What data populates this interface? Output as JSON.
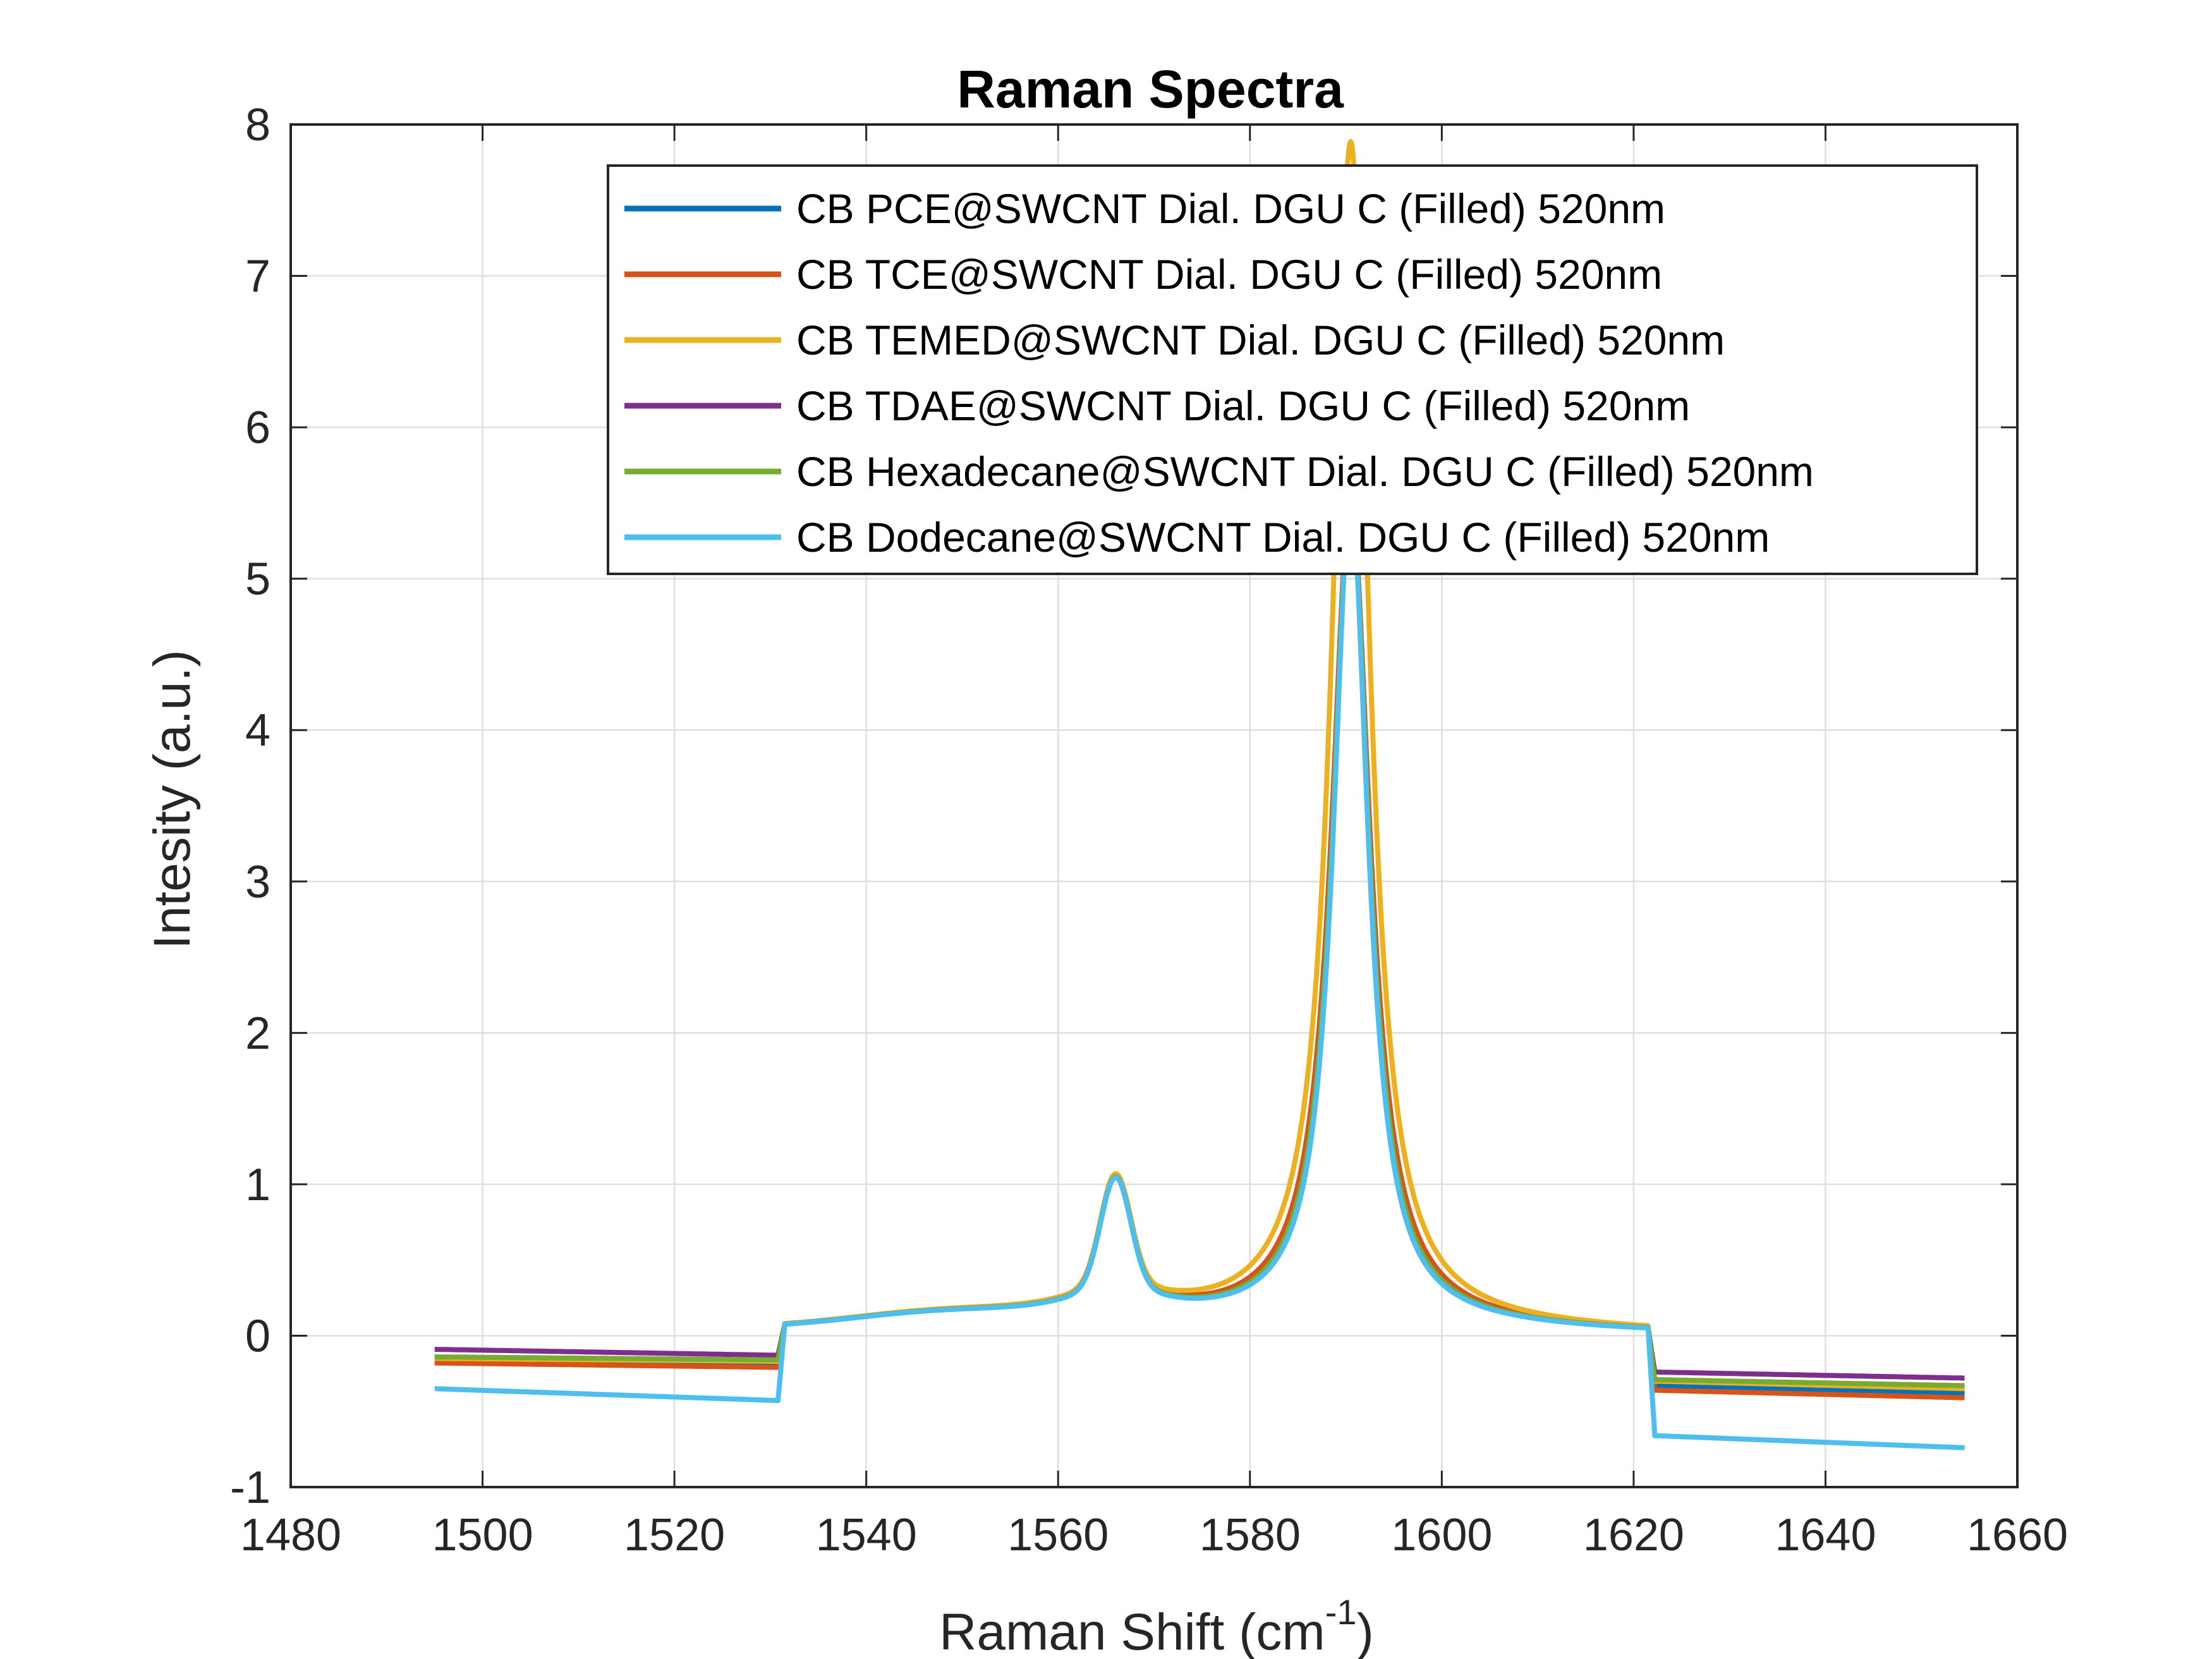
{
  "chart_data": {
    "type": "line",
    "title": "Raman Spectra",
    "xlabel_main": "Raman Shift (cm",
    "xlabel_sup": "-1",
    "xlabel_end": ")",
    "ylabel": "Intesity (a.u.)",
    "xlim": [
      1480,
      1660
    ],
    "ylim": [
      -1,
      8
    ],
    "xticks": [
      1480,
      1500,
      1520,
      1540,
      1560,
      1580,
      1600,
      1620,
      1640,
      1660
    ],
    "yticks": [
      -1,
      0,
      1,
      2,
      3,
      4,
      5,
      6,
      7,
      8
    ],
    "grid": true,
    "legend_position": "top-right",
    "peak_x": [
      1566,
      1590.5
    ],
    "series": [
      {
        "name": "CB PCE@SWCNT Dial. DGU C (Filled) 520nm",
        "color": "#0072BD",
        "baseline_left": [
          -0.16,
          -0.18
        ],
        "baseline_right": [
          -0.33,
          -0.38
        ],
        "g_peak": 5.5,
        "g_width": 2.25
      },
      {
        "name": "CB TCE@SWCNT Dial. DGU C (Filled) 520nm",
        "color": "#D95319",
        "baseline_left": [
          -0.18,
          -0.21
        ],
        "baseline_right": [
          -0.36,
          -0.41
        ],
        "g_peak": 5.5,
        "g_width": 2.45
      },
      {
        "name": "CB TEMED@SWCNT Dial. DGU C (Filled) 520nm",
        "color": "#EDB120",
        "baseline_left": [
          -0.15,
          -0.17
        ],
        "baseline_right": [
          -0.3,
          -0.35
        ],
        "g_peak": 7.85,
        "g_width": 2.3
      },
      {
        "name": "CB TDAE@SWCNT Dial. DGU C (Filled) 520nm",
        "color": "#7E2F8E",
        "baseline_left": [
          -0.09,
          -0.13
        ],
        "baseline_right": [
          -0.24,
          -0.28
        ],
        "g_peak": 5.5,
        "g_width": 2.3
      },
      {
        "name": "CB Hexadecane@SWCNT Dial. DGU C (Filled) 520nm",
        "color": "#77AC30",
        "baseline_left": [
          -0.14,
          -0.16
        ],
        "baseline_right": [
          -0.29,
          -0.33
        ],
        "g_peak": 5.5,
        "g_width": 2.3
      },
      {
        "name": "CB Dodecane@SWCNT Dial. DGU C (Filled) 520nm",
        "color": "#4DBEEE",
        "baseline_left": [
          -0.35,
          -0.43
        ],
        "baseline_right": [
          -0.66,
          -0.74
        ],
        "g_peak": 5.5,
        "g_width": 2.2
      }
    ]
  }
}
